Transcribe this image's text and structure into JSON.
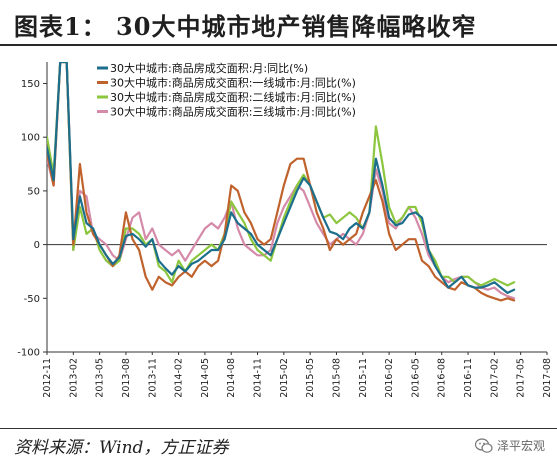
{
  "title": "图表1：   30大中城市地产销售降幅略收窄",
  "source": "资料来源：Wind，方正证券",
  "watermark": {
    "icon": "wechat-icon",
    "text": "泽平宏观"
  },
  "chart_data": {
    "type": "line",
    "ylim": [
      -100,
      170
    ],
    "yticks": [
      -100,
      -50,
      0,
      50,
      100,
      150
    ],
    "x_range": [
      0,
      76
    ],
    "xtick_labels": [
      "2012-11",
      "2013-02",
      "2013-05",
      "2013-08",
      "2013-11",
      "2014-02",
      "2014-05",
      "2014-08",
      "2014-11",
      "2015-02",
      "2015-05",
      "2015-08",
      "2015-11",
      "2016-02",
      "2016-05",
      "2016-08",
      "2016-11",
      "2017-02",
      "2017-05",
      "2017-08"
    ],
    "xtick_positions": [
      0,
      4,
      8,
      12,
      16,
      20,
      24,
      28,
      32,
      36,
      40,
      44,
      48,
      52,
      56,
      60,
      64,
      68,
      72,
      76
    ],
    "legend_placement": "top-left",
    "grid": false,
    "series": [
      {
        "name": "30大中城市:商品房成交面积:月:同比(%)",
        "color": "#1b6e8c",
        "width": 2.2,
        "values": [
          90,
          60,
          170,
          170,
          5,
          45,
          20,
          15,
          0,
          -10,
          -18,
          -12,
          8,
          10,
          5,
          -2,
          5,
          -15,
          -22,
          -28,
          -20,
          -25,
          -18,
          -15,
          -10,
          -5,
          -5,
          5,
          30,
          20,
          15,
          10,
          0,
          -5,
          -10,
          5,
          20,
          35,
          50,
          62,
          55,
          40,
          25,
          12,
          10,
          5,
          15,
          20,
          15,
          30,
          80,
          55,
          25,
          18,
          20,
          28,
          30,
          25,
          -5,
          -20,
          -30,
          -40,
          -35,
          -30,
          -38,
          -40,
          -40,
          -38,
          -35,
          -40,
          -45,
          -42
        ]
      },
      {
        "name": "30大中城市:商品房成交面积:一线城市:月:同比(%)",
        "color": "#c0622c",
        "width": 2.2,
        "values": [
          85,
          55,
          170,
          170,
          0,
          75,
          30,
          10,
          0,
          -10,
          -20,
          -10,
          30,
          5,
          -5,
          -30,
          -42,
          -30,
          -35,
          -38,
          -30,
          -25,
          -30,
          -20,
          -15,
          -20,
          -15,
          10,
          55,
          50,
          30,
          20,
          5,
          0,
          5,
          30,
          55,
          75,
          80,
          80,
          55,
          30,
          15,
          -5,
          5,
          0,
          5,
          10,
          30,
          45,
          60,
          40,
          10,
          -5,
          0,
          5,
          5,
          -15,
          -20,
          -30,
          -35,
          -40,
          -42,
          -35,
          -38,
          -40,
          -45,
          -48,
          -50,
          -52,
          -50,
          -52
        ]
      },
      {
        "name": "30大中城市:商品房成交面积:二线城市:月:同比(%)",
        "color": "#8cc63f",
        "width": 2.2,
        "values": [
          100,
          65,
          170,
          170,
          -5,
          35,
          10,
          15,
          -5,
          -15,
          -20,
          -15,
          15,
          15,
          10,
          0,
          5,
          -20,
          -25,
          -35,
          -15,
          -25,
          -15,
          -10,
          -5,
          0,
          -5,
          10,
          40,
          30,
          20,
          5,
          -5,
          -10,
          -15,
          5,
          25,
          40,
          55,
          65,
          55,
          40,
          25,
          28,
          20,
          25,
          30,
          25,
          15,
          30,
          110,
          75,
          35,
          20,
          25,
          35,
          35,
          20,
          -5,
          -15,
          -30,
          -30,
          -35,
          -30,
          -30,
          -35,
          -38,
          -35,
          -32,
          -35,
          -38,
          -35
        ]
      },
      {
        "name": "30大中城市:商品房成交面积:三线城市:月:同比(%)",
        "color": "#d48aa8",
        "width": 2.2,
        "values": [
          80,
          55,
          170,
          170,
          -5,
          50,
          45,
          10,
          5,
          0,
          -10,
          -15,
          5,
          25,
          30,
          5,
          15,
          0,
          -5,
          -10,
          -5,
          -15,
          -5,
          5,
          15,
          20,
          15,
          25,
          40,
          15,
          0,
          -5,
          -10,
          -10,
          -5,
          20,
          35,
          45,
          55,
          50,
          35,
          20,
          10,
          0,
          5,
          10,
          5,
          0,
          10,
          30,
          70,
          50,
          20,
          15,
          25,
          35,
          25,
          10,
          -10,
          -20,
          -30,
          -35,
          -32,
          -30,
          -30,
          -35,
          -40,
          -42,
          -40,
          -45,
          -48,
          -50
        ]
      }
    ]
  }
}
